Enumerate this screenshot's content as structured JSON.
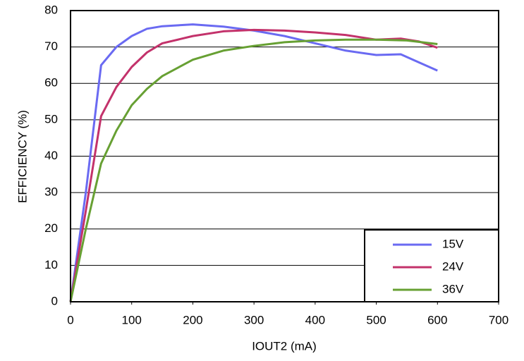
{
  "chart_data": {
    "type": "line",
    "x_label": "IOUT2 (mA)",
    "y_label": "EFFICIENCY (%)",
    "xlim": [
      0,
      700
    ],
    "xticks": [
      0,
      100,
      200,
      300,
      400,
      500,
      600,
      700
    ],
    "ylim": [
      0,
      80
    ],
    "yticks": [
      0,
      10,
      20,
      30,
      40,
      50,
      60,
      70,
      80
    ],
    "grid": true,
    "legend": "lower right",
    "series": [
      {
        "name": "15V",
        "color": "#6a6af2",
        "x": [
          0,
          25,
          50,
          75,
          100,
          125,
          150,
          200,
          250,
          300,
          350,
          400,
          450,
          500,
          540,
          560,
          600
        ],
        "values": [
          0,
          30,
          65,
          70,
          73,
          75,
          75.7,
          76.2,
          75.6,
          74.5,
          73,
          71,
          69,
          67.8,
          68,
          66.5,
          63.5
        ]
      },
      {
        "name": "24V",
        "color": "#c3326b",
        "x": [
          0,
          25,
          50,
          75,
          100,
          125,
          150,
          200,
          250,
          300,
          350,
          400,
          450,
          500,
          540,
          570,
          600
        ],
        "values": [
          0,
          25,
          51,
          59,
          64.5,
          68.5,
          71,
          73,
          74.3,
          74.7,
          74.5,
          74,
          73.3,
          72,
          72.3,
          71.5,
          69.8
        ]
      },
      {
        "name": "36V",
        "color": "#67a033",
        "x": [
          0,
          25,
          50,
          75,
          100,
          125,
          150,
          200,
          250,
          300,
          350,
          400,
          450,
          500,
          550,
          600
        ],
        "values": [
          0,
          20,
          38,
          47,
          54,
          58.5,
          62,
          66.5,
          69,
          70.3,
          71.3,
          71.8,
          72,
          72,
          71.8,
          70.8
        ]
      }
    ]
  }
}
